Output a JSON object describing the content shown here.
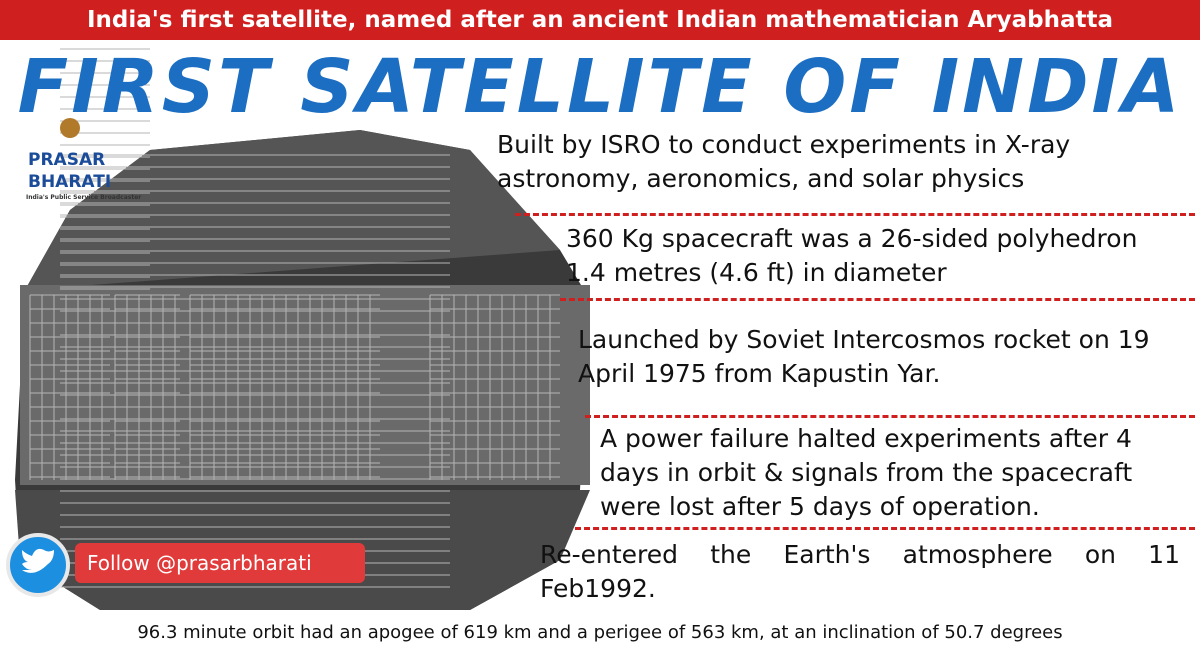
{
  "banner": "India's first satellite, named after an ancient Indian mathematician Aryabhatta",
  "title": "FIRST SATELLITE OF INDIA",
  "logo": {
    "line1": "PRASAR",
    "line2": "BHARATI",
    "tagline": "India's Public Service Broadcaster"
  },
  "facts": [
    {
      "lines": [
        "Built by ISRO to conduct experiments in X-ray",
        "astronomy, aeronomics, and solar physics"
      ]
    },
    {
      "lines": [
        "360 Kg spacecraft was a 26-sided polyhedron",
        "1.4 metres (4.6 ft) in diameter"
      ]
    },
    {
      "lines": [
        "Launched by Soviet Intercosmos rocket on 19",
        "April 1975 from Kapustin Yar."
      ]
    },
    {
      "lines": [
        "A power failure halted experiments after 4",
        "days in orbit & signals from the spacecraft",
        "were lost after 5 days of operation."
      ]
    },
    {
      "lines": [
        "Re-entered the Earth's atmosphere on 11",
        "Feb1992."
      ]
    }
  ],
  "follow": "Follow @prasarbharati",
  "footer": "96.3 minute orbit had an apogee of 619 km and a perigee of 563 km, at an inclination of 50.7 degrees"
}
